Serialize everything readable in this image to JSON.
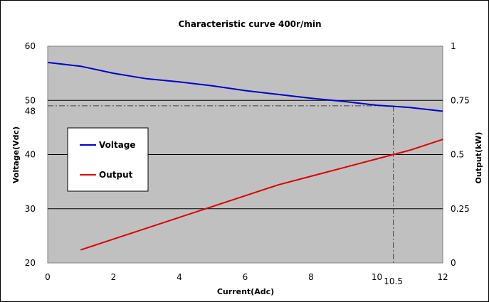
{
  "chart_data": {
    "type": "line",
    "title": "Characteristic curve  400r/min",
    "xlabel": "Current(Adc)",
    "ylabel": "Voltage(Vdc)",
    "y2label": "Output(kW)",
    "xlim": [
      0,
      12
    ],
    "ylim": [
      20,
      60
    ],
    "y2lim": [
      0,
      1
    ],
    "x_ticks": [
      "0",
      "2",
      "4",
      "6",
      "8",
      "10",
      "12"
    ],
    "y_ticks": [
      "20",
      "30",
      "40",
      "50",
      "60"
    ],
    "y2_ticks": [
      "0",
      "0.25",
      "0.5",
      "0.75",
      "1"
    ],
    "extra_x_tick": "10.5",
    "extra_y_tick": "48",
    "grid": true,
    "legend_position": "left",
    "reference_point": {
      "x": 10.5,
      "y": 49
    },
    "series": [
      {
        "name": "Voltage",
        "axis": "left",
        "color": "#0000cc",
        "x": [
          0,
          1,
          2,
          3,
          4,
          5,
          6,
          7,
          8,
          9,
          10,
          10.5,
          11,
          12
        ],
        "y": [
          57.0,
          56.3,
          55.0,
          54.0,
          53.4,
          52.7,
          51.8,
          51.1,
          50.4,
          49.8,
          49.1,
          48.9,
          48.7,
          48.0
        ]
      },
      {
        "name": "Output",
        "axis": "right",
        "color": "#dd0000",
        "x": [
          1,
          2,
          3,
          4,
          5,
          6,
          7,
          8,
          9,
          10,
          10.5,
          11,
          12
        ],
        "y": [
          0.06,
          0.11,
          0.16,
          0.21,
          0.26,
          0.31,
          0.36,
          0.4,
          0.44,
          0.48,
          0.5,
          0.52,
          0.57
        ]
      }
    ]
  }
}
